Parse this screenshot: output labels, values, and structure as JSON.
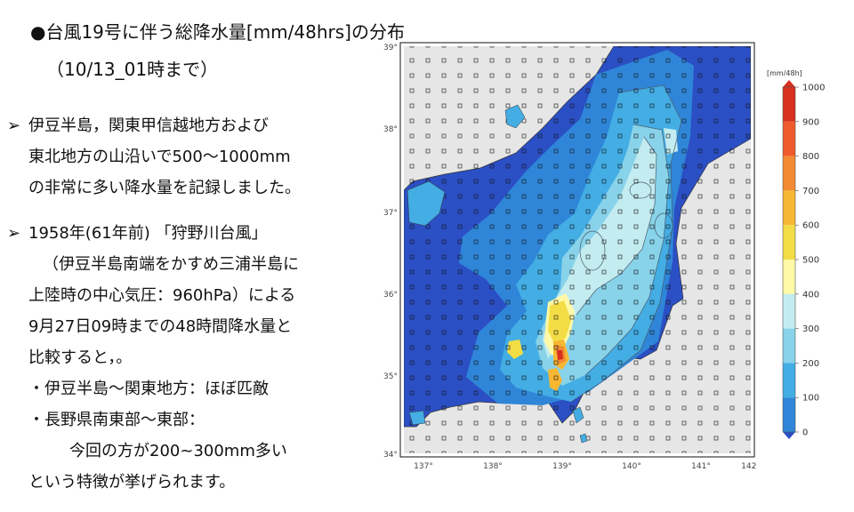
{
  "title": "●台風19号に伴う総降水量[mm/48hrs]の分布",
  "subtitle": "（10/13_01時まで）",
  "bullets": [
    {
      "mark": "➢",
      "lines": [
        "伊豆半島，関東甲信越地方および",
        "東北地方の山沿いで500〜1000mm",
        "の非常に多い降水量を記録しました。"
      ]
    },
    {
      "mark": "➢",
      "lines": [
        "1958年(61年前) 「狩野川台風」",
        "（伊豆半島南端をかすめ三浦半島に",
        "上陸時の中心気圧：960hPa）による",
        "9月27日09時までの48時間降水量と",
        "比較すると，。",
        "・伊豆半島〜関東地方：ほぼ匹敵",
        "・長野県南東部〜東部：",
        "今回の方が200~300mm多い",
        "という特徴が挙げられます。"
      ]
    }
  ],
  "map": {
    "lon_ticks": [
      "137°",
      "138°",
      "139°",
      "140°",
      "141°",
      "142°"
    ],
    "lat_ticks": [
      "39°",
      "38°",
      "37°",
      "36°",
      "35°",
      "34°"
    ]
  },
  "legend": {
    "unit": "[mm/48h]",
    "levels": [
      "1000",
      "900",
      "800",
      "700",
      "600",
      "500",
      "400",
      "300",
      "200",
      "100",
      "0"
    ],
    "colors": [
      "#d7301f",
      "#ef5a2c",
      "#f28b34",
      "#f7b733",
      "#f3dd45",
      "#fff9a8",
      "#c3ecf1",
      "#88d3ea",
      "#43ade4",
      "#2f86d8",
      "#2b4fc4"
    ]
  }
}
